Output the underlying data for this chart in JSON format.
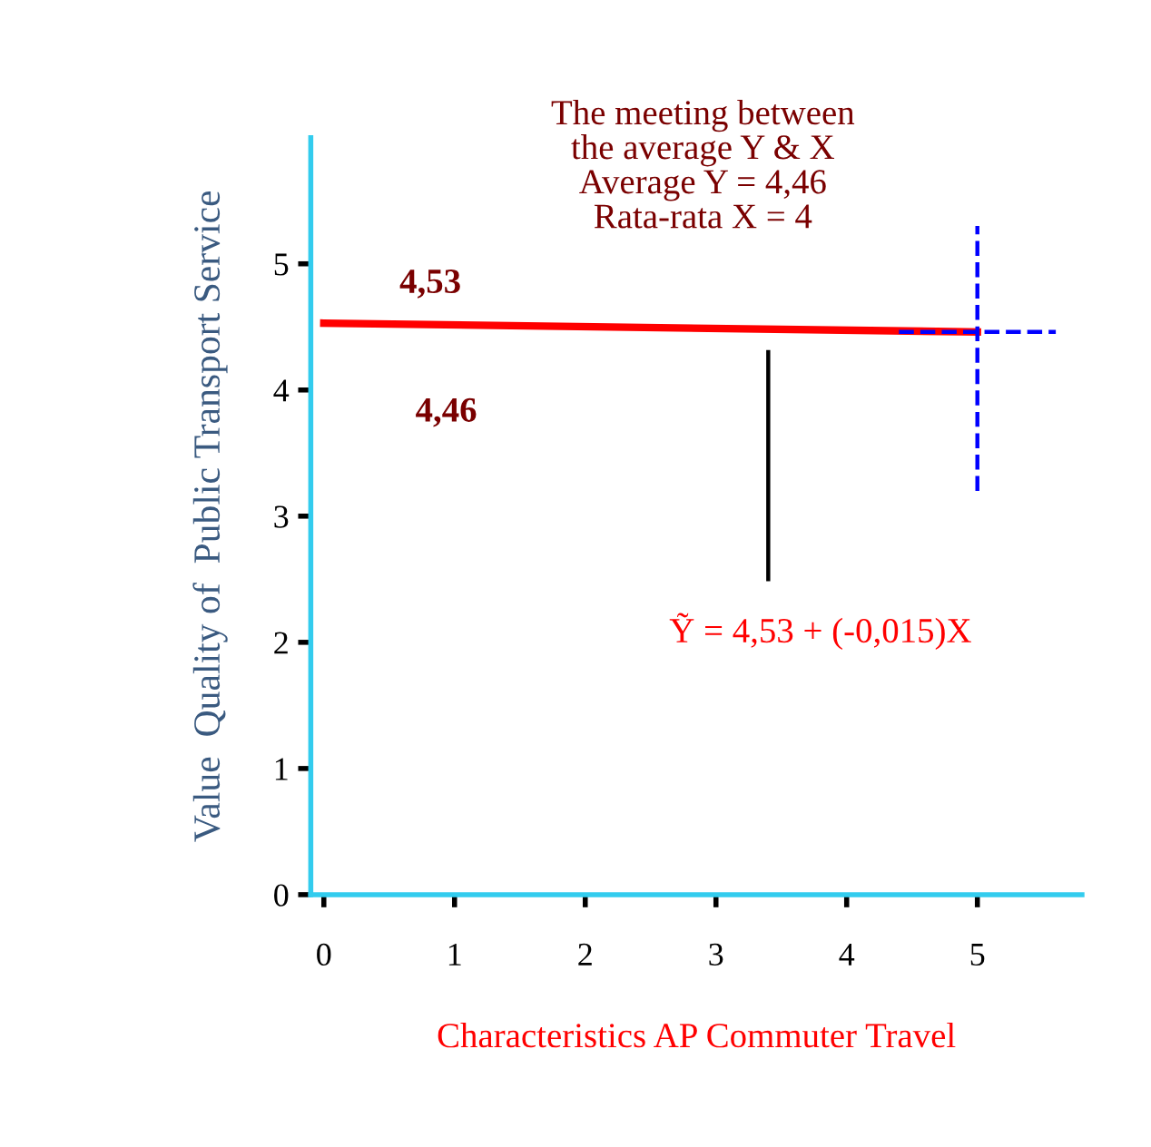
{
  "chart_data": {
    "type": "line",
    "xlabel": "Characteristics AP Commuter Travel",
    "ylabel": "Value  Quality of  Public Transport Service",
    "x": [
      0,
      5
    ],
    "series": [
      {
        "color": "#ff0000",
        "values": [
          4.53,
          4.46
        ]
      },
      {
        "type": "line",
        "color": "#000000",
        "x": [
          3.4,
          3.4
        ],
        "values": [
          2.5,
          4.3
        ]
      },
      {
        "type": "line",
        "color": "#0000ff",
        "line_style": "dashed",
        "x": [
          5,
          5
        ],
        "values": [
          3.2,
          5.3
        ]
      },
      {
        "type": "line",
        "color": "#0000ff",
        "line_style": "dashed",
        "x": [
          4.4,
          5.6
        ],
        "values": [
          4.46,
          4.46
        ]
      }
    ],
    "xlim": [
      -0.1,
      5.8
    ],
    "ylim": [
      0,
      6
    ],
    "xticks": [
      0,
      1,
      2,
      3,
      4,
      5
    ],
    "yticks": [
      0,
      1,
      2,
      3,
      4,
      5
    ],
    "grid": false,
    "annotations": [
      {
        "text": "The meeting between\nthe average Y & X\nAverage Y = 4,46\nRata-rata X = 4"
      },
      {
        "text": "4,53",
        "x": 0,
        "y": 4.53
      },
      "4,46",
      {
        "text": "Ỹ = 4,53 + (-0,015)X"
      }
    ]
  }
}
